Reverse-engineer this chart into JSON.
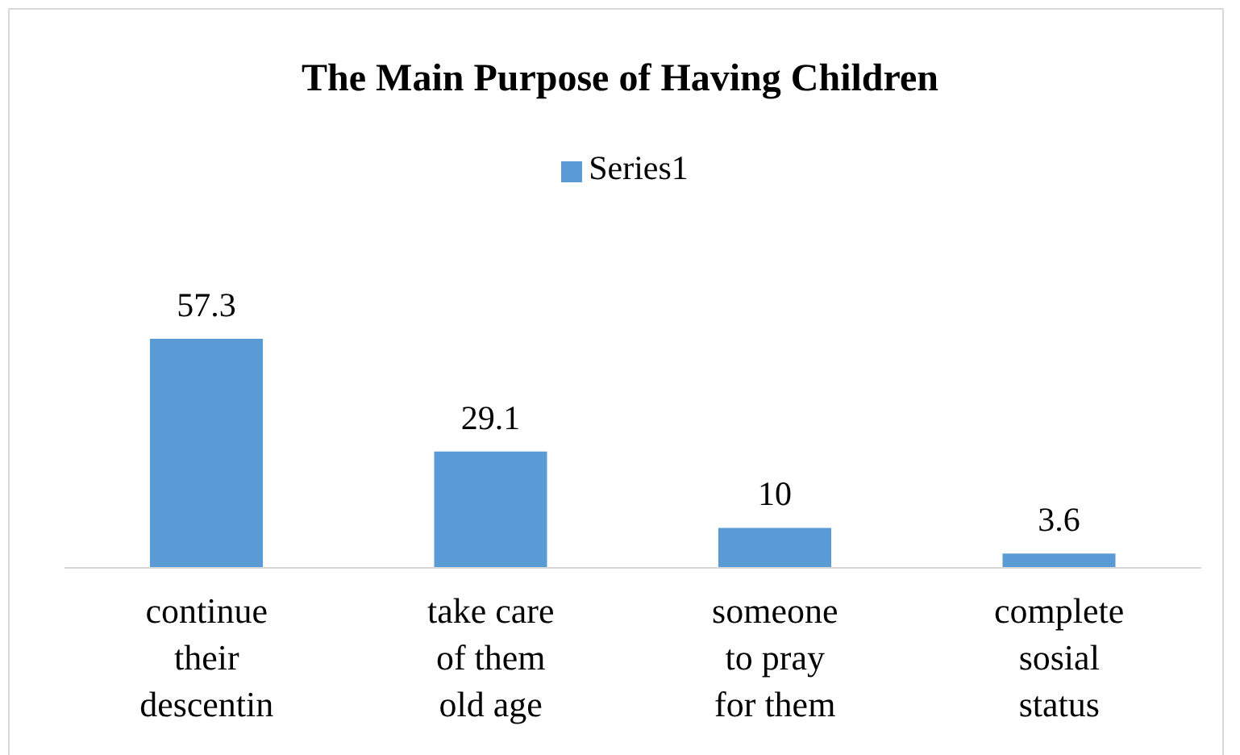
{
  "chart_data": {
    "type": "bar",
    "title": "The Main Purpose of Having Children",
    "categories": [
      "continue their descentin",
      "take care of them old age",
      "someone to pray for them",
      "complete sosial status"
    ],
    "series": [
      {
        "name": "Series1",
        "color": "#5b9bd5",
        "values": [
          57.3,
          29.1,
          10,
          3.6
        ]
      }
    ],
    "data_labels": true,
    "legend": "top"
  }
}
